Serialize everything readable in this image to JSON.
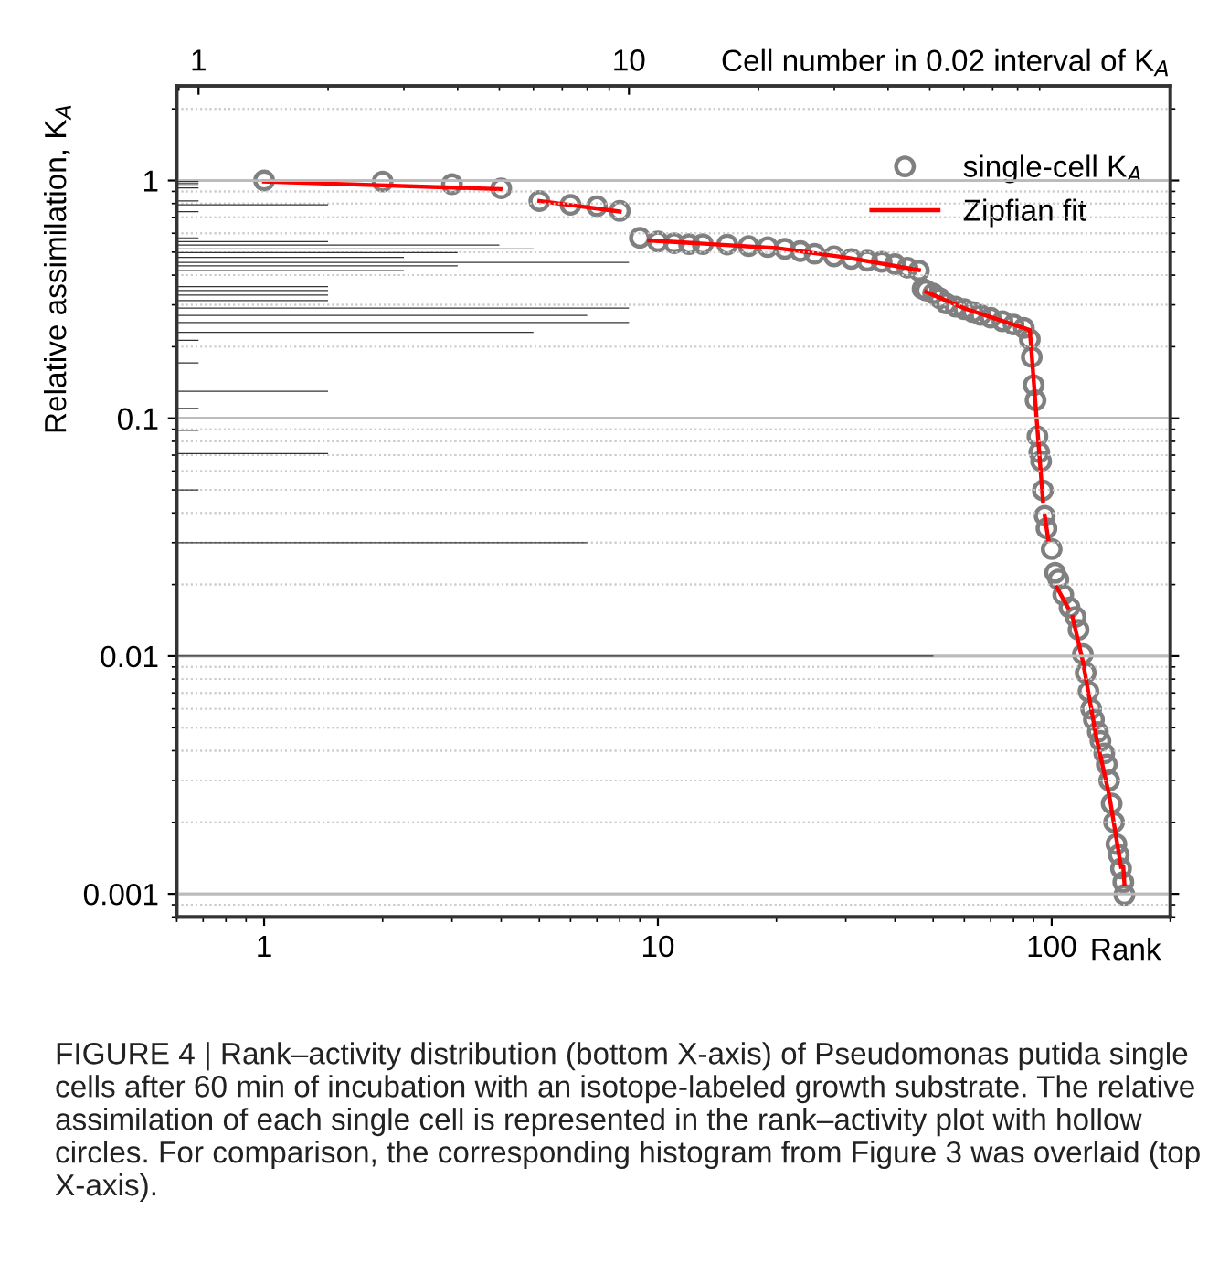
{
  "chart_data": [
    {
      "type": "bar",
      "orientation": "horizontal",
      "xlabel": "Cell number in 0.02 interval of K$_{A}$",
      "log": "xy",
      "tick_labels": "x",
      "grid": "y",
      "xlim": [
        0.89,
        181
      ],
      "xticks": [
        1,
        10
      ],
      "ylim": [
        0.0008,
        2.5
      ],
      "color": "#333333",
      "x": [
        0.99,
        0.97,
        0.95,
        0.93,
        0.82,
        0.79,
        0.74,
        0.574,
        0.554,
        0.535,
        0.516,
        0.498,
        0.475,
        0.453,
        0.438,
        0.418,
        0.358,
        0.345,
        0.33,
        0.313,
        0.291,
        0.271,
        0.253,
        0.23,
        0.213,
        0.171,
        0.13,
        0.11,
        0.089,
        0.071,
        0.05,
        0.03,
        0.01
      ],
      "values": [
        1,
        1,
        1,
        1,
        1,
        2,
        1,
        1,
        2,
        5,
        6,
        4,
        3,
        10,
        4,
        3,
        2,
        2,
        2,
        2,
        10,
        8,
        10,
        6,
        1,
        1,
        2,
        1,
        1,
        2,
        1,
        8,
        51
      ]
    },
    {
      "type": "scatter",
      "xlabel": "Rank",
      "ylabel": "Relative assimilation, K$_{A}$",
      "log": "xy",
      "grid": "y",
      "legend": "top right",
      "marker": "circle",
      "xlim": [
        0.6,
        200
      ],
      "xticks": [
        1,
        10,
        100
      ],
      "ylim": [
        0.0008,
        2.5
      ],
      "yticks": [
        0.001,
        0.01,
        0.1,
        1
      ],
      "series": [
        {
          "name": "single-cell K$_{A}$",
          "color": "#808080",
          "x": [
            1,
            2,
            3,
            4,
            5,
            6,
            7,
            8,
            9,
            10,
            11,
            12,
            13,
            15,
            17,
            19,
            21,
            23,
            25,
            28,
            31,
            34,
            37,
            40,
            43,
            46,
            47,
            48,
            50,
            52,
            54,
            57,
            60,
            63,
            66,
            70,
            75,
            80,
            85,
            88,
            89,
            90,
            91,
            92,
            93,
            94,
            95,
            96,
            97,
            100,
            102,
            104,
            107,
            111,
            115,
            117,
            120,
            122,
            124,
            126,
            128,
            131,
            133,
            136,
            138,
            140,
            142,
            144,
            146,
            148,
            150,
            152,
            153
          ],
          "values": [
            1.0,
            0.99,
            0.965,
            0.927,
            0.82,
            0.79,
            0.78,
            0.745,
            0.574,
            0.554,
            0.545,
            0.54,
            0.54,
            0.538,
            0.53,
            0.525,
            0.516,
            0.505,
            0.492,
            0.48,
            0.468,
            0.46,
            0.455,
            0.445,
            0.43,
            0.418,
            0.35,
            0.345,
            0.335,
            0.32,
            0.304,
            0.295,
            0.288,
            0.28,
            0.272,
            0.265,
            0.256,
            0.248,
            0.24,
            0.215,
            0.181,
            0.138,
            0.119,
            0.084,
            0.072,
            0.066,
            0.0497,
            0.0389,
            0.0344,
            0.0282,
            0.0224,
            0.021,
            0.0181,
            0.016,
            0.0146,
            0.0129,
            0.0102,
            0.0085,
            0.0071,
            0.006,
            0.0054,
            0.0048,
            0.0044,
            0.0039,
            0.0035,
            0.003,
            0.0024,
            0.002,
            0.00162,
            0.00146,
            0.00128,
            0.00112,
            0.00099
          ]
        },
        {
          "type": "line",
          "name": "Zipfian fit",
          "color": "#ff0000",
          "marker": "none",
          "x": [
            1,
            4,
            4.5,
            5,
            8,
            8.7,
            9.5,
            20,
            30,
            46,
            47,
            48,
            60,
            88,
            95,
            95.5,
            96,
            98,
            100,
            103,
            110,
            112,
            113,
            120,
            130,
            140,
            150,
            151,
            152,
            153
          ],
          "values": [
            0.99,
            0.92,
            null,
            0.82,
            0.74,
            null,
            0.56,
            0.52,
            0.475,
            0.42,
            null,
            0.34,
            0.29,
            0.235,
            0.045,
            null,
            0.039,
            0.031,
            null,
            0.0195,
            0.016,
            null,
            0.0146,
            0.0095,
            0.0045,
            0.0026,
            0.0013,
            null,
            0.0013,
            0.0011
          ]
        }
      ],
      "annotations": [
        "FIGURE 4 | Rank–activity distribution (bottom X-axis) of Pseudomonas putida single cells after 60 min of incubation with an isotope-labeled growth substrate. The relative assimilation of each single cell is represented in the rank–activity plot with hollow circles. For comparison, the corresponding histogram from Figure 3 was overlaid (top X-axis)."
      ]
    }
  ]
}
